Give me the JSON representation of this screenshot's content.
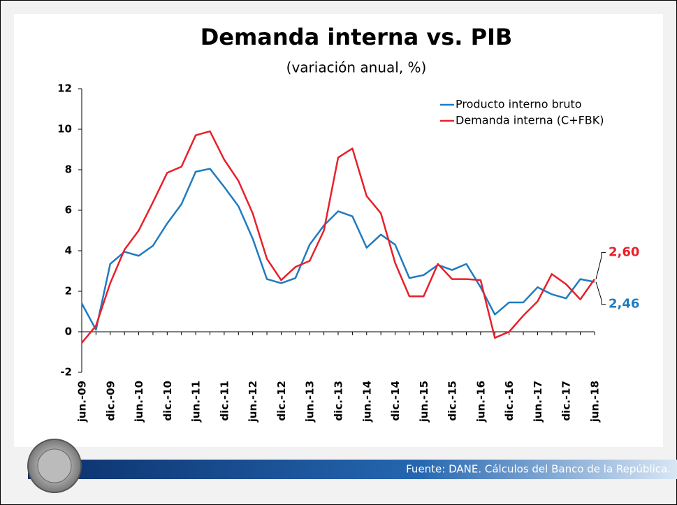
{
  "chart_data": {
    "type": "line",
    "title": "Demanda interna vs. PIB",
    "subtitle": "(variación anual, %)",
    "source": "Fuente: DANE. Cálculos del Banco de la República.",
    "categories": [
      "jun.-09",
      null,
      "dic.-09",
      null,
      "jun.-10",
      null,
      "dic.-10",
      null,
      "jun.-11",
      null,
      "dic.-11",
      null,
      "jun.-12",
      null,
      "dic.-12",
      null,
      "jun.-13",
      null,
      "dic.-13",
      null,
      "jun.-14",
      null,
      "dic.-14",
      null,
      "jun.-15",
      null,
      "dic.-15",
      null,
      "jun.-16",
      null,
      "dic.-16",
      null,
      "jun.-17",
      null,
      "dic.-17",
      null,
      "jun.-18"
    ],
    "series": [
      {
        "name": "Producto interno bruto",
        "color": "#1f7bc0",
        "values": [
          1.4,
          0.1,
          3.35,
          3.95,
          3.75,
          4.25,
          5.35,
          6.3,
          7.9,
          8.05,
          7.15,
          6.2,
          4.6,
          2.6,
          2.4,
          2.65,
          4.3,
          5.25,
          5.95,
          5.7,
          4.15,
          4.8,
          4.3,
          2.65,
          2.8,
          3.3,
          3.05,
          3.35,
          2.2,
          0.85,
          1.45,
          1.45,
          2.2,
          1.85,
          1.65,
          2.6,
          2.46
        ],
        "value_labels": [
          null,
          null,
          null,
          null,
          null,
          null,
          null,
          null,
          null,
          null,
          null,
          null,
          null,
          null,
          null,
          null,
          null,
          null,
          null,
          null,
          null,
          null,
          null,
          null,
          null,
          null,
          null,
          null,
          null,
          null,
          null,
          null,
          null,
          null,
          null,
          null,
          "2,46"
        ]
      },
      {
        "name": "Demanda interna (C+FBK)",
        "color": "#e8202a",
        "values": [
          -0.55,
          0.3,
          2.4,
          4.05,
          5.0,
          6.4,
          7.85,
          8.15,
          9.7,
          9.9,
          8.5,
          7.45,
          5.85,
          3.6,
          2.55,
          3.2,
          3.5,
          5.0,
          8.6,
          9.05,
          6.7,
          5.85,
          3.4,
          1.75,
          1.75,
          3.35,
          2.6,
          2.6,
          2.55,
          -0.3,
          0.0,
          0.8,
          1.5,
          2.85,
          2.35,
          1.6,
          2.6
        ],
        "value_labels": [
          null,
          null,
          null,
          null,
          null,
          null,
          null,
          null,
          null,
          null,
          null,
          null,
          null,
          null,
          null,
          null,
          null,
          null,
          null,
          null,
          null,
          null,
          null,
          null,
          null,
          null,
          null,
          null,
          null,
          null,
          null,
          null,
          null,
          null,
          null,
          null,
          "2,60"
        ]
      }
    ],
    "ylim": [
      -2,
      12
    ],
    "yticks": [
      -2,
      0,
      2,
      4,
      6,
      8,
      10,
      12
    ],
    "legend": "upper right"
  }
}
